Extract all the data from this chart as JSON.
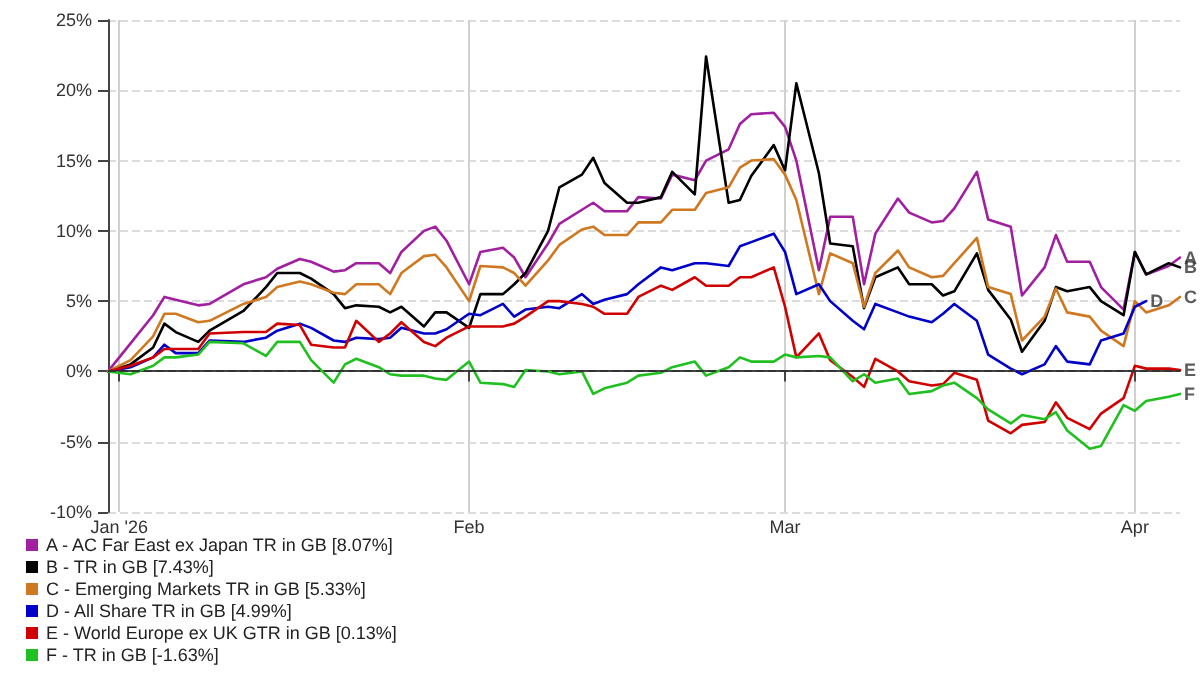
{
  "chart_data": {
    "type": "line",
    "x": [
      "2025-12-31",
      "2026-01-02",
      "2026-01-04",
      "2026-01-05",
      "2026-01-06",
      "2026-01-08",
      "2026-01-09",
      "2026-01-12",
      "2026-01-14",
      "2026-01-15",
      "2026-01-17",
      "2026-01-18",
      "2026-01-20",
      "2026-01-21",
      "2026-01-22",
      "2026-01-24",
      "2026-01-25",
      "2026-01-26",
      "2026-01-28",
      "2026-01-29",
      "2026-01-30",
      "2026-02-01",
      "2026-02-02",
      "2026-02-04",
      "2026-02-05",
      "2026-02-06",
      "2026-02-08",
      "2026-02-09",
      "2026-02-11",
      "2026-02-12",
      "2026-02-13",
      "2026-02-15",
      "2026-02-16",
      "2026-02-18",
      "2026-02-19",
      "2026-02-21",
      "2026-02-22",
      "2026-02-24",
      "2026-02-25",
      "2026-02-26",
      "2026-02-28",
      "2026-03-01",
      "2026-03-02",
      "2026-03-04",
      "2026-03-05",
      "2026-03-07",
      "2026-03-08",
      "2026-03-09",
      "2026-03-11",
      "2026-03-12",
      "2026-03-14",
      "2026-03-15",
      "2026-03-16",
      "2026-03-18",
      "2026-03-19",
      "2026-03-21",
      "2026-03-22",
      "2026-03-24",
      "2026-03-25",
      "2026-03-26",
      "2026-03-28",
      "2026-03-29",
      "2026-03-31",
      "2026-04-01",
      "2026-04-02",
      "2026-04-04",
      "2026-04-05"
    ],
    "series": [
      {
        "name": "A - AC Far East ex Japan TR in GB [8.07%]",
        "color": "#a020a0",
        "values": [
          0,
          2.0,
          4.0,
          5.3,
          5.1,
          4.7,
          4.8,
          6.2,
          6.7,
          7.3,
          8.0,
          7.8,
          7.1,
          7.2,
          7.7,
          7.7,
          7.0,
          8.5,
          10.0,
          10.3,
          9.3,
          6.2,
          8.5,
          8.8,
          8.1,
          6.7,
          9.1,
          10.5,
          11.5,
          12.0,
          11.4,
          11.4,
          12.4,
          12.3,
          14.0,
          13.6,
          15.0,
          15.8,
          17.6,
          18.3,
          18.4,
          17.4,
          15.0,
          7.2,
          11.0,
          11.0,
          6.2,
          9.8,
          12.3,
          11.3,
          10.6,
          10.7,
          11.6,
          14.2,
          10.8,
          10.3,
          5.4,
          7.4,
          9.7,
          7.8,
          7.8,
          6.0,
          4.4,
          8.5,
          6.9,
          7.5,
          8.1
        ]
      },
      {
        "name": "B - TR in GB [7.43%]",
        "color": "#000000",
        "values": [
          0,
          0.5,
          1.7,
          3.4,
          2.8,
          2.1,
          2.9,
          4.3,
          6.0,
          7.0,
          7.0,
          6.6,
          5.5,
          4.5,
          4.7,
          4.6,
          4.2,
          4.6,
          3.2,
          4.2,
          4.2,
          3.1,
          5.5,
          5.5,
          6.2,
          7.0,
          10.0,
          13.1,
          14.0,
          15.2,
          13.4,
          12.0,
          12.0,
          12.4,
          14.2,
          12.6,
          22.4,
          12.0,
          12.2,
          13.9,
          16.1,
          14.3,
          20.5,
          14.1,
          9.1,
          8.9,
          4.5,
          6.7,
          7.4,
          6.2,
          6.2,
          5.4,
          5.7,
          8.4,
          5.8,
          3.7,
          1.4,
          3.6,
          6.0,
          5.7,
          6.0,
          5.0,
          4.0,
          8.5,
          6.9,
          7.7,
          7.4
        ]
      },
      {
        "name": "C - Emerging Markets TR in GB [5.33%]",
        "color": "#d07820",
        "values": [
          0,
          0.8,
          2.5,
          4.1,
          4.1,
          3.5,
          3.6,
          4.8,
          5.3,
          6.0,
          6.4,
          6.2,
          5.6,
          5.5,
          6.2,
          6.2,
          5.5,
          7.0,
          8.2,
          8.3,
          7.4,
          5.0,
          7.5,
          7.4,
          7.0,
          6.1,
          7.9,
          9.0,
          10.1,
          10.3,
          9.7,
          9.7,
          10.6,
          10.6,
          11.5,
          11.5,
          12.7,
          13.1,
          14.5,
          15.0,
          15.1,
          14.0,
          12.2,
          5.5,
          8.4,
          7.7,
          4.6,
          7.0,
          8.6,
          7.4,
          6.7,
          6.8,
          7.7,
          9.5,
          6.0,
          5.5,
          2.2,
          3.9,
          5.9,
          4.2,
          3.9,
          2.9,
          1.8,
          5.0,
          4.2,
          4.7,
          5.3
        ]
      },
      {
        "name": "D - All Share TR in GB [4.99%]",
        "color": "#0000c8",
        "values": [
          0,
          0.3,
          1.0,
          1.9,
          1.3,
          1.3,
          2.2,
          2.1,
          2.4,
          2.9,
          3.4,
          3.1,
          2.2,
          2.1,
          2.4,
          2.3,
          2.4,
          3.1,
          2.7,
          2.7,
          3.0,
          4.1,
          4.0,
          4.8,
          3.9,
          4.4,
          4.6,
          4.5,
          5.5,
          4.8,
          5.1,
          5.5,
          6.2,
          7.4,
          7.2,
          7.7,
          7.7,
          7.5,
          8.9,
          9.2,
          9.8,
          8.5,
          5.5,
          6.2,
          5.0,
          3.6,
          3.0,
          4.8,
          4.2,
          3.9,
          3.5,
          4.1,
          4.8,
          3.6,
          1.2,
          0.2,
          -0.2,
          0.5,
          1.8,
          0.7,
          0.5,
          2.2,
          2.7,
          4.6,
          5.0,
          null,
          null
        ]
      },
      {
        "name": "E - World Europe ex UK GTR in GB [0.13%]",
        "color": "#d00000",
        "values": [
          0,
          0.4,
          1.0,
          1.6,
          1.6,
          1.6,
          2.7,
          2.8,
          2.8,
          3.4,
          3.3,
          1.9,
          1.7,
          1.7,
          3.6,
          2.1,
          2.7,
          3.5,
          2.1,
          1.8,
          2.4,
          3.2,
          3.2,
          3.2,
          3.4,
          3.9,
          5.0,
          5.0,
          4.8,
          4.6,
          4.1,
          4.1,
          5.3,
          6.1,
          5.8,
          6.7,
          6.1,
          6.1,
          6.7,
          6.7,
          7.4,
          4.6,
          1.0,
          2.7,
          0.8,
          -0.4,
          -1.1,
          0.9,
          0,
          -0.7,
          -1.0,
          -0.9,
          -0.1,
          -0.6,
          -3.5,
          -4.4,
          -3.8,
          -3.6,
          -2.2,
          -3.3,
          -4.1,
          -3.0,
          -1.9,
          0.4,
          0.2,
          0.2,
          0.1
        ]
      },
      {
        "name": "F - TR in GB [-1.63%]",
        "color": "#20c020",
        "values": [
          0,
          -0.2,
          0.4,
          1.0,
          1.0,
          1.2,
          2.1,
          2.0,
          1.1,
          2.1,
          2.1,
          0.8,
          -0.8,
          0.5,
          0.9,
          0.3,
          -0.2,
          -0.3,
          -0.3,
          -0.5,
          -0.6,
          0.7,
          -0.8,
          -0.9,
          -1.1,
          0.1,
          0,
          -0.2,
          0,
          -1.6,
          -1.2,
          -0.8,
          -0.3,
          -0.1,
          0.3,
          0.7,
          -0.3,
          0.3,
          1.0,
          0.7,
          0.7,
          1.2,
          1.0,
          1.1,
          1.0,
          -0.7,
          -0.2,
          -0.8,
          -0.5,
          -1.6,
          -1.4,
          -1.0,
          -0.8,
          -1.9,
          -2.7,
          -3.7,
          -3.1,
          -3.4,
          -2.9,
          -4.2,
          -5.5,
          -5.3,
          -2.4,
          -2.8,
          -2.1,
          -1.8,
          -1.6
        ]
      }
    ],
    "annotations": [
      {
        "text": "A",
        "x": "2026-04-05",
        "y": 8.1
      },
      {
        "text": "B",
        "x": "2026-04-05",
        "y": 7.4
      },
      {
        "text": "C",
        "x": "2026-04-05",
        "y": 5.3
      },
      {
        "text": "D",
        "x": "2026-04-02",
        "y": 5.0
      },
      {
        "text": "E",
        "x": "2026-04-05",
        "y": 0.1
      },
      {
        "text": "F",
        "x": "2026-04-05",
        "y": -1.6
      }
    ],
    "xlim": [
      "2025-12-31",
      "2026-04-05"
    ],
    "xticks": [
      {
        "value": "2026-01-01",
        "label": "Jan '26"
      },
      {
        "value": "2026-02-01",
        "label": "Feb"
      },
      {
        "value": "2026-03-01",
        "label": "Mar"
      },
      {
        "value": "2026-04-01",
        "label": "Apr"
      }
    ],
    "ylim": [
      -10,
      25
    ],
    "yticks": [
      {
        "value": -10,
        "label": "-10%"
      },
      {
        "value": -5,
        "label": "-5%"
      },
      {
        "value": 0,
        "label": "0%"
      },
      {
        "value": 5,
        "label": "5%"
      },
      {
        "value": 10,
        "label": "10%"
      },
      {
        "value": 15,
        "label": "15%"
      },
      {
        "value": 20,
        "label": "20%"
      },
      {
        "value": 25,
        "label": "25%"
      }
    ],
    "ref_lines": [
      {
        "axis": "y",
        "value": 0,
        "label": null,
        "color": "#333333",
        "line_style": "dashed"
      }
    ],
    "grid": true,
    "legend": "bottom left",
    "marker": "none",
    "line_style": "solid"
  }
}
